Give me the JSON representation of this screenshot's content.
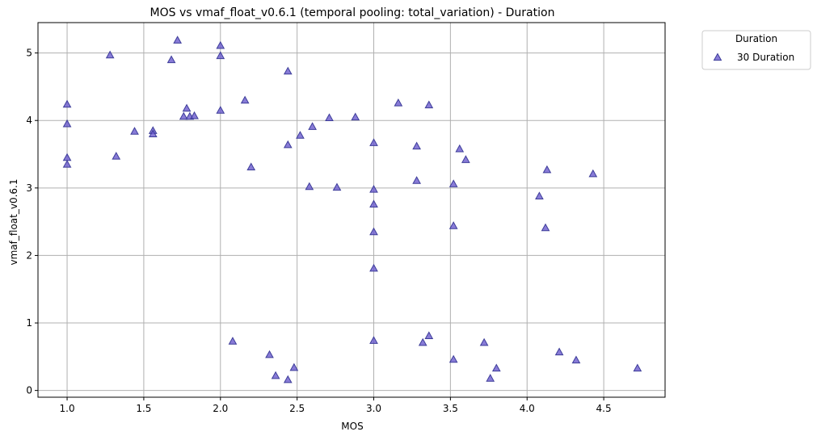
{
  "chart_data": {
    "type": "scatter",
    "title": "MOS vs vmaf_float_v0.6.1 (temporal pooling: total_variation) - Duration",
    "xlabel": "MOS",
    "ylabel": "vmaf_float_v0.6.1",
    "xlim": [
      0.81,
      4.9
    ],
    "ylim": [
      -0.1,
      5.45
    ],
    "xticks": [
      1.0,
      1.5,
      2.0,
      2.5,
      3.0,
      3.5,
      4.0,
      4.5
    ],
    "xtick_labels": [
      "1.0",
      "1.5",
      "2.0",
      "2.5",
      "3.0",
      "3.5",
      "4.0",
      "4.5"
    ],
    "yticks": [
      0,
      1,
      2,
      3,
      4,
      5
    ],
    "ytick_labels": [
      "0",
      "1",
      "2",
      "3",
      "4",
      "5"
    ],
    "grid": true,
    "legend": {
      "title": "Duration",
      "placement": "outside-top-right",
      "entries": [
        "30 Duration"
      ]
    },
    "series": [
      {
        "name": "30 Duration",
        "marker": "triangle-up",
        "color": "#6a5acd",
        "edge_color": "#3d3d99",
        "points": [
          [
            1.0,
            4.24
          ],
          [
            1.0,
            3.95
          ],
          [
            1.0,
            3.45
          ],
          [
            1.0,
            3.35
          ],
          [
            1.28,
            4.97
          ],
          [
            1.32,
            3.47
          ],
          [
            1.44,
            3.84
          ],
          [
            1.56,
            3.85
          ],
          [
            1.56,
            3.8
          ],
          [
            1.68,
            4.9
          ],
          [
            1.72,
            5.19
          ],
          [
            1.76,
            4.06
          ],
          [
            1.78,
            4.18
          ],
          [
            1.8,
            4.06
          ],
          [
            1.83,
            4.07
          ],
          [
            2.0,
            5.11
          ],
          [
            2.0,
            4.96
          ],
          [
            2.0,
            4.15
          ],
          [
            2.08,
            0.73
          ],
          [
            2.16,
            4.3
          ],
          [
            2.2,
            3.31
          ],
          [
            2.32,
            0.53
          ],
          [
            2.36,
            0.22
          ],
          [
            2.44,
            4.73
          ],
          [
            2.44,
            3.64
          ],
          [
            2.44,
            0.16
          ],
          [
            2.48,
            0.34
          ],
          [
            2.52,
            3.78
          ],
          [
            2.58,
            3.02
          ],
          [
            2.6,
            3.91
          ],
          [
            2.71,
            4.04
          ],
          [
            2.76,
            3.01
          ],
          [
            2.88,
            4.05
          ],
          [
            3.0,
            3.67
          ],
          [
            3.0,
            2.98
          ],
          [
            3.0,
            2.76
          ],
          [
            3.0,
            2.35
          ],
          [
            3.0,
            1.81
          ],
          [
            3.0,
            0.74
          ],
          [
            3.16,
            4.26
          ],
          [
            3.28,
            3.62
          ],
          [
            3.28,
            3.11
          ],
          [
            3.32,
            0.71
          ],
          [
            3.36,
            4.23
          ],
          [
            3.36,
            0.81
          ],
          [
            3.52,
            3.06
          ],
          [
            3.52,
            2.44
          ],
          [
            3.52,
            0.46
          ],
          [
            3.56,
            3.58
          ],
          [
            3.6,
            3.42
          ],
          [
            3.72,
            0.71
          ],
          [
            3.76,
            0.18
          ],
          [
            3.8,
            0.33
          ],
          [
            4.08,
            2.88
          ],
          [
            4.12,
            2.41
          ],
          [
            4.13,
            3.27
          ],
          [
            4.21,
            0.57
          ],
          [
            4.32,
            0.45
          ],
          [
            4.43,
            3.21
          ],
          [
            4.72,
            0.33
          ]
        ]
      }
    ]
  }
}
